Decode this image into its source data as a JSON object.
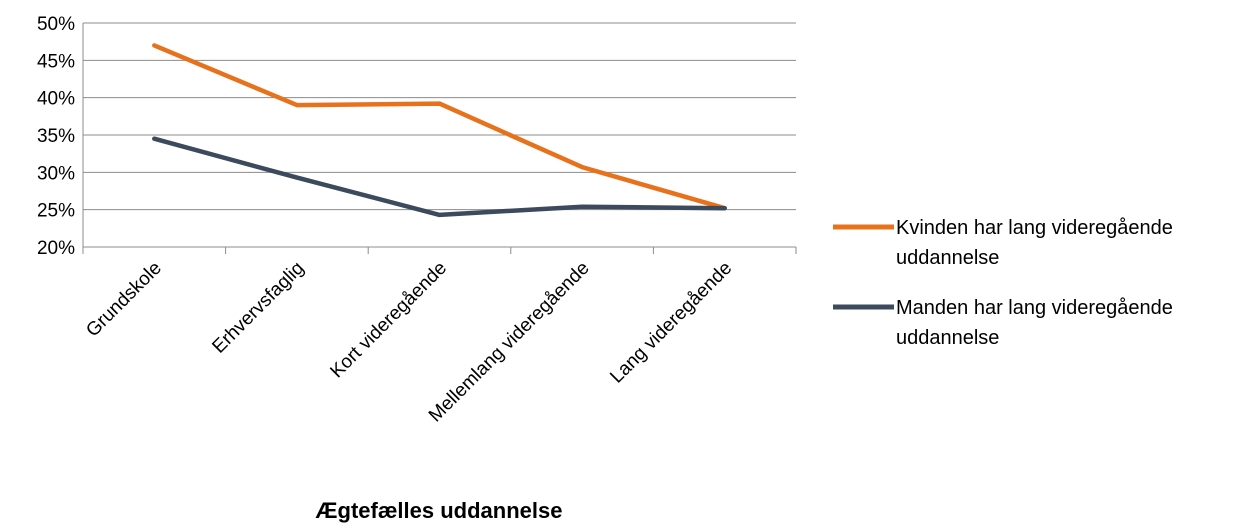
{
  "chart_data": {
    "type": "line",
    "categories": [
      "Grundskole",
      "Erhvervsfaglig",
      "Kort videregående",
      "Mellemlang videregående",
      "Lang videregående"
    ],
    "series": [
      {
        "name": "Kvinden har lang videregående uddannelse",
        "values": [
          47.0,
          39.0,
          39.2,
          30.7,
          25.2
        ],
        "color": "#E8711B"
      },
      {
        "name": "Manden har lang videregående uddannelse",
        "values": [
          34.5,
          29.3,
          24.3,
          25.4,
          25.2
        ],
        "color": "#3B4A5C"
      }
    ],
    "xlabel": "Ægtefælles uddannelse",
    "ylabel": "",
    "ylim": [
      20,
      50
    ],
    "yticks": [
      "20%",
      "25%",
      "30%",
      "35%",
      "40%",
      "45%",
      "50%"
    ],
    "grid": true,
    "legend_position": "right"
  }
}
